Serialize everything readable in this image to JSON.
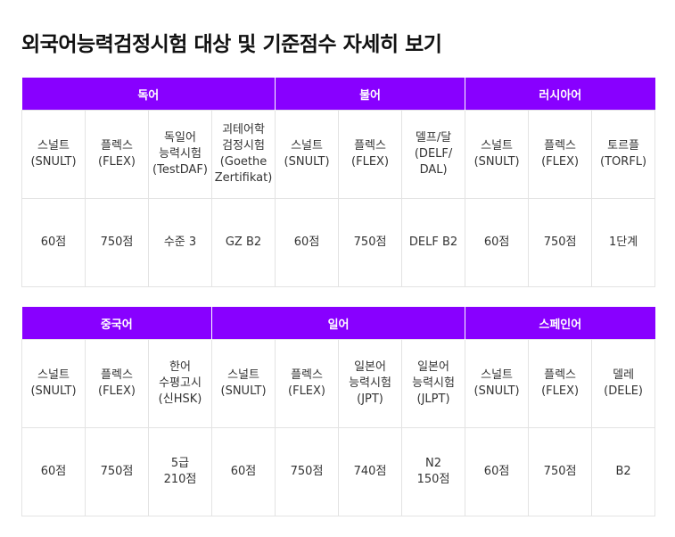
{
  "title": "외국어능력검정시험 대상 및 기준점수 자세히 보기",
  "accent_color": "#8800ff",
  "tables": [
    {
      "groups": [
        {
          "label": "독어",
          "colspan": 4
        },
        {
          "label": "불어",
          "colspan": 3
        },
        {
          "label": "러시아어",
          "colspan": 3
        }
      ],
      "exams": [
        [
          "스널트",
          "(SNULT)"
        ],
        [
          "플렉스",
          "(FLEX)"
        ],
        [
          "독일어",
          "능력시험",
          "(TestDAF)"
        ],
        [
          "괴테어학",
          "검정시험",
          "(Goethe",
          "Zertifikat)"
        ],
        [
          "스널트",
          "(SNULT)"
        ],
        [
          "플렉스",
          "(FLEX)"
        ],
        [
          "델프/달",
          "(DELF/",
          "DAL)"
        ],
        [
          "스널트",
          "(SNULT)"
        ],
        [
          "플렉스",
          "(FLEX)"
        ],
        [
          "토르플",
          "(TORFL)"
        ]
      ],
      "scores": [
        [
          "60점"
        ],
        [
          "750점"
        ],
        [
          "수준 3"
        ],
        [
          "GZ B2"
        ],
        [
          "60점"
        ],
        [
          "750점"
        ],
        [
          "DELF B2"
        ],
        [
          "60점"
        ],
        [
          "750점"
        ],
        [
          "1단계"
        ]
      ]
    },
    {
      "groups": [
        {
          "label": "중국어",
          "colspan": 3
        },
        {
          "label": "일어",
          "colspan": 4
        },
        {
          "label": "스페인어",
          "colspan": 3
        }
      ],
      "exams": [
        [
          "스널트",
          "(SNULT)"
        ],
        [
          "플렉스",
          "(FLEX)"
        ],
        [
          "한어",
          "수평고시",
          "(신HSK)"
        ],
        [
          "스널트",
          "(SNULT)"
        ],
        [
          "플렉스",
          "(FLEX)"
        ],
        [
          "일본어",
          "능력시험",
          "(JPT)"
        ],
        [
          "일본어",
          "능력시험",
          "(JLPT)"
        ],
        [
          "스널트",
          "(SNULT)"
        ],
        [
          "플렉스",
          "(FLEX)"
        ],
        [
          "델레",
          "(DELE)"
        ]
      ],
      "scores": [
        [
          "60점"
        ],
        [
          "750점"
        ],
        [
          "5급",
          "210점"
        ],
        [
          "60점"
        ],
        [
          "750점"
        ],
        [
          "740점"
        ],
        [
          "N2",
          "150점"
        ],
        [
          "60점"
        ],
        [
          "750점"
        ],
        [
          "B2"
        ]
      ]
    }
  ]
}
